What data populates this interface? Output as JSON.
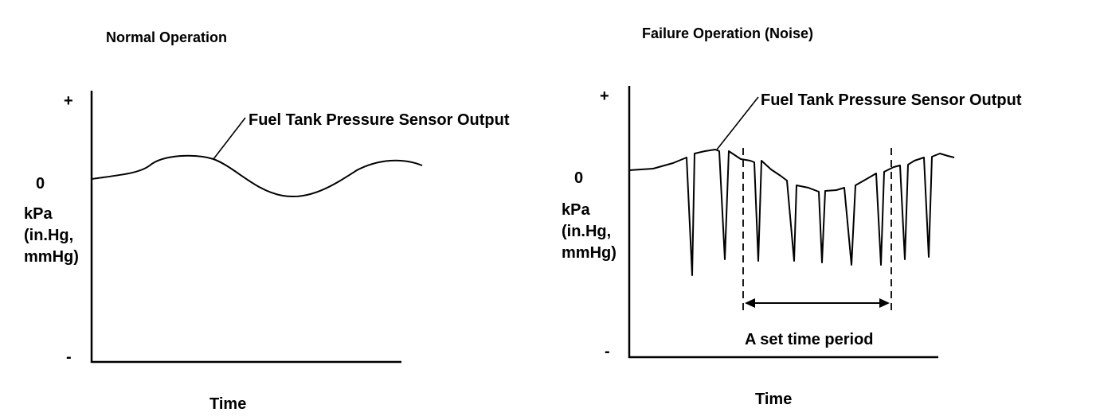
{
  "left_panel": {
    "title": "Normal Operation",
    "curve_label": "Fuel Tank Pressure Sensor Output",
    "y_plus": "+",
    "y_zero": "0",
    "y_unit_lines": [
      "kPa",
      "(in.Hg,",
      "mmHg)"
    ],
    "y_minus": "-",
    "x_label": "Time"
  },
  "right_panel": {
    "title": "Failure Operation (Noise)",
    "curve_label": "Fuel Tank Pressure Sensor Output",
    "y_plus": "+",
    "y_zero": "0",
    "y_unit_lines": [
      "kPa",
      "(in.Hg,",
      "mmHg)"
    ],
    "y_minus": "-",
    "x_label": "Time",
    "period_label": "A set time period"
  }
}
